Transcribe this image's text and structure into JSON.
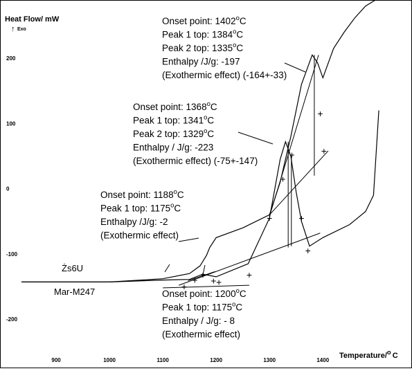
{
  "chart_data": {
    "type": "line",
    "title": "",
    "ylabel": "Heat Flow/ mW",
    "ylabel_sub": "Exo",
    "xlabel": "Temperature/ °C",
    "xlabel_text": "Temperature/",
    "xlabel_unit": "C",
    "xlim": [
      835,
      1510
    ],
    "ylim": [
      -255,
      285
    ],
    "x_ticks": [
      900,
      1000,
      1100,
      1200,
      1300,
      1400
    ],
    "y_ticks": [
      200,
      100,
      0,
      -100,
      -200
    ],
    "grid": false,
    "series": [
      {
        "name": "Żs6U",
        "label_text": "Żs6U",
        "x": [
          835,
          1000,
          1100,
          1150,
          1170,
          1182,
          1188,
          1200,
          1250,
          1300,
          1320,
          1340,
          1360,
          1380,
          1390,
          1400,
          1420,
          1440,
          1460,
          1480,
          1500
        ],
        "y": [
          -143,
          -143,
          -138,
          -130,
          -118,
          -102,
          -90,
          -75,
          -60,
          -40,
          10,
          80,
          160,
          205,
          193,
          170,
          215,
          240,
          262,
          280,
          290
        ]
      },
      {
        "name": "Mar-M247",
        "label_text": "Mar-M247",
        "x": [
          835,
          1000,
          1100,
          1150,
          1175,
          1200,
          1260,
          1300,
          1320,
          1330,
          1340,
          1350,
          1360,
          1375,
          1400,
          1450,
          1480,
          1495,
          1505
        ],
        "y": [
          -143,
          -143,
          -140,
          -139,
          -131,
          -135,
          -115,
          -45,
          45,
          72,
          50,
          -5,
          -50,
          -88,
          -75,
          -55,
          -35,
          -10,
          120
        ]
      }
    ],
    "annotations": [
      {
        "lines": [
          "Onset point: 1402",
          "Peak 1 top: 1384",
          "Peak 2 top: 1335",
          "Enthalpy /J/g: -197",
          "(Exothermic effect) (-164+-33)"
        ],
        "units": [
          "C",
          "C",
          "C"
        ]
      },
      {
        "lines": [
          "Onset point: 1368",
          "Peak 1 top: 1341",
          "Peak 2 top: 1329",
          "Enthalpy / J/g: -223",
          "(Exothermic effect) (-75+-147)"
        ],
        "units": [
          "C",
          "C",
          "C"
        ]
      },
      {
        "lines": [
          "Onset point: 1188",
          "Peak 1 top: 1175",
          "Enthalpy /J/g: -2",
          "(Exothermic effect)"
        ],
        "units": [
          "C",
          "C"
        ]
      },
      {
        "lines": [
          "Onset point: 1200",
          "Peak 1 top: 1175",
          "Enthalpy / J/g: - 8",
          "(Exothermic effect)"
        ],
        "units": [
          "C",
          "C"
        ]
      }
    ]
  }
}
